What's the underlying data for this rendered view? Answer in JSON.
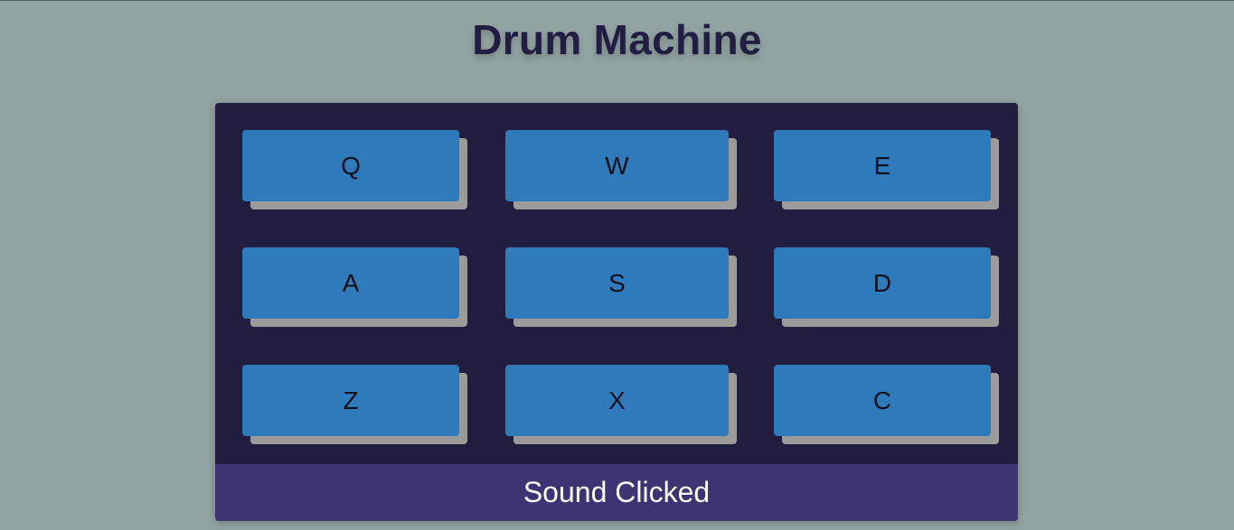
{
  "app": {
    "title": "Drum Machine"
  },
  "pads": [
    {
      "key": "Q"
    },
    {
      "key": "W"
    },
    {
      "key": "E"
    },
    {
      "key": "A"
    },
    {
      "key": "S"
    },
    {
      "key": "D"
    },
    {
      "key": "Z"
    },
    {
      "key": "X"
    },
    {
      "key": "C"
    }
  ],
  "display": {
    "text": "Sound Clicked"
  },
  "colors": {
    "page_background": "#92a4a2",
    "title_text": "#221d42",
    "machine_background": "#211d3e",
    "pad": "#2f7aba",
    "pad_shadow": "#9b9b9b",
    "display_background": "#3f3473",
    "display_text": "#ffffff"
  }
}
